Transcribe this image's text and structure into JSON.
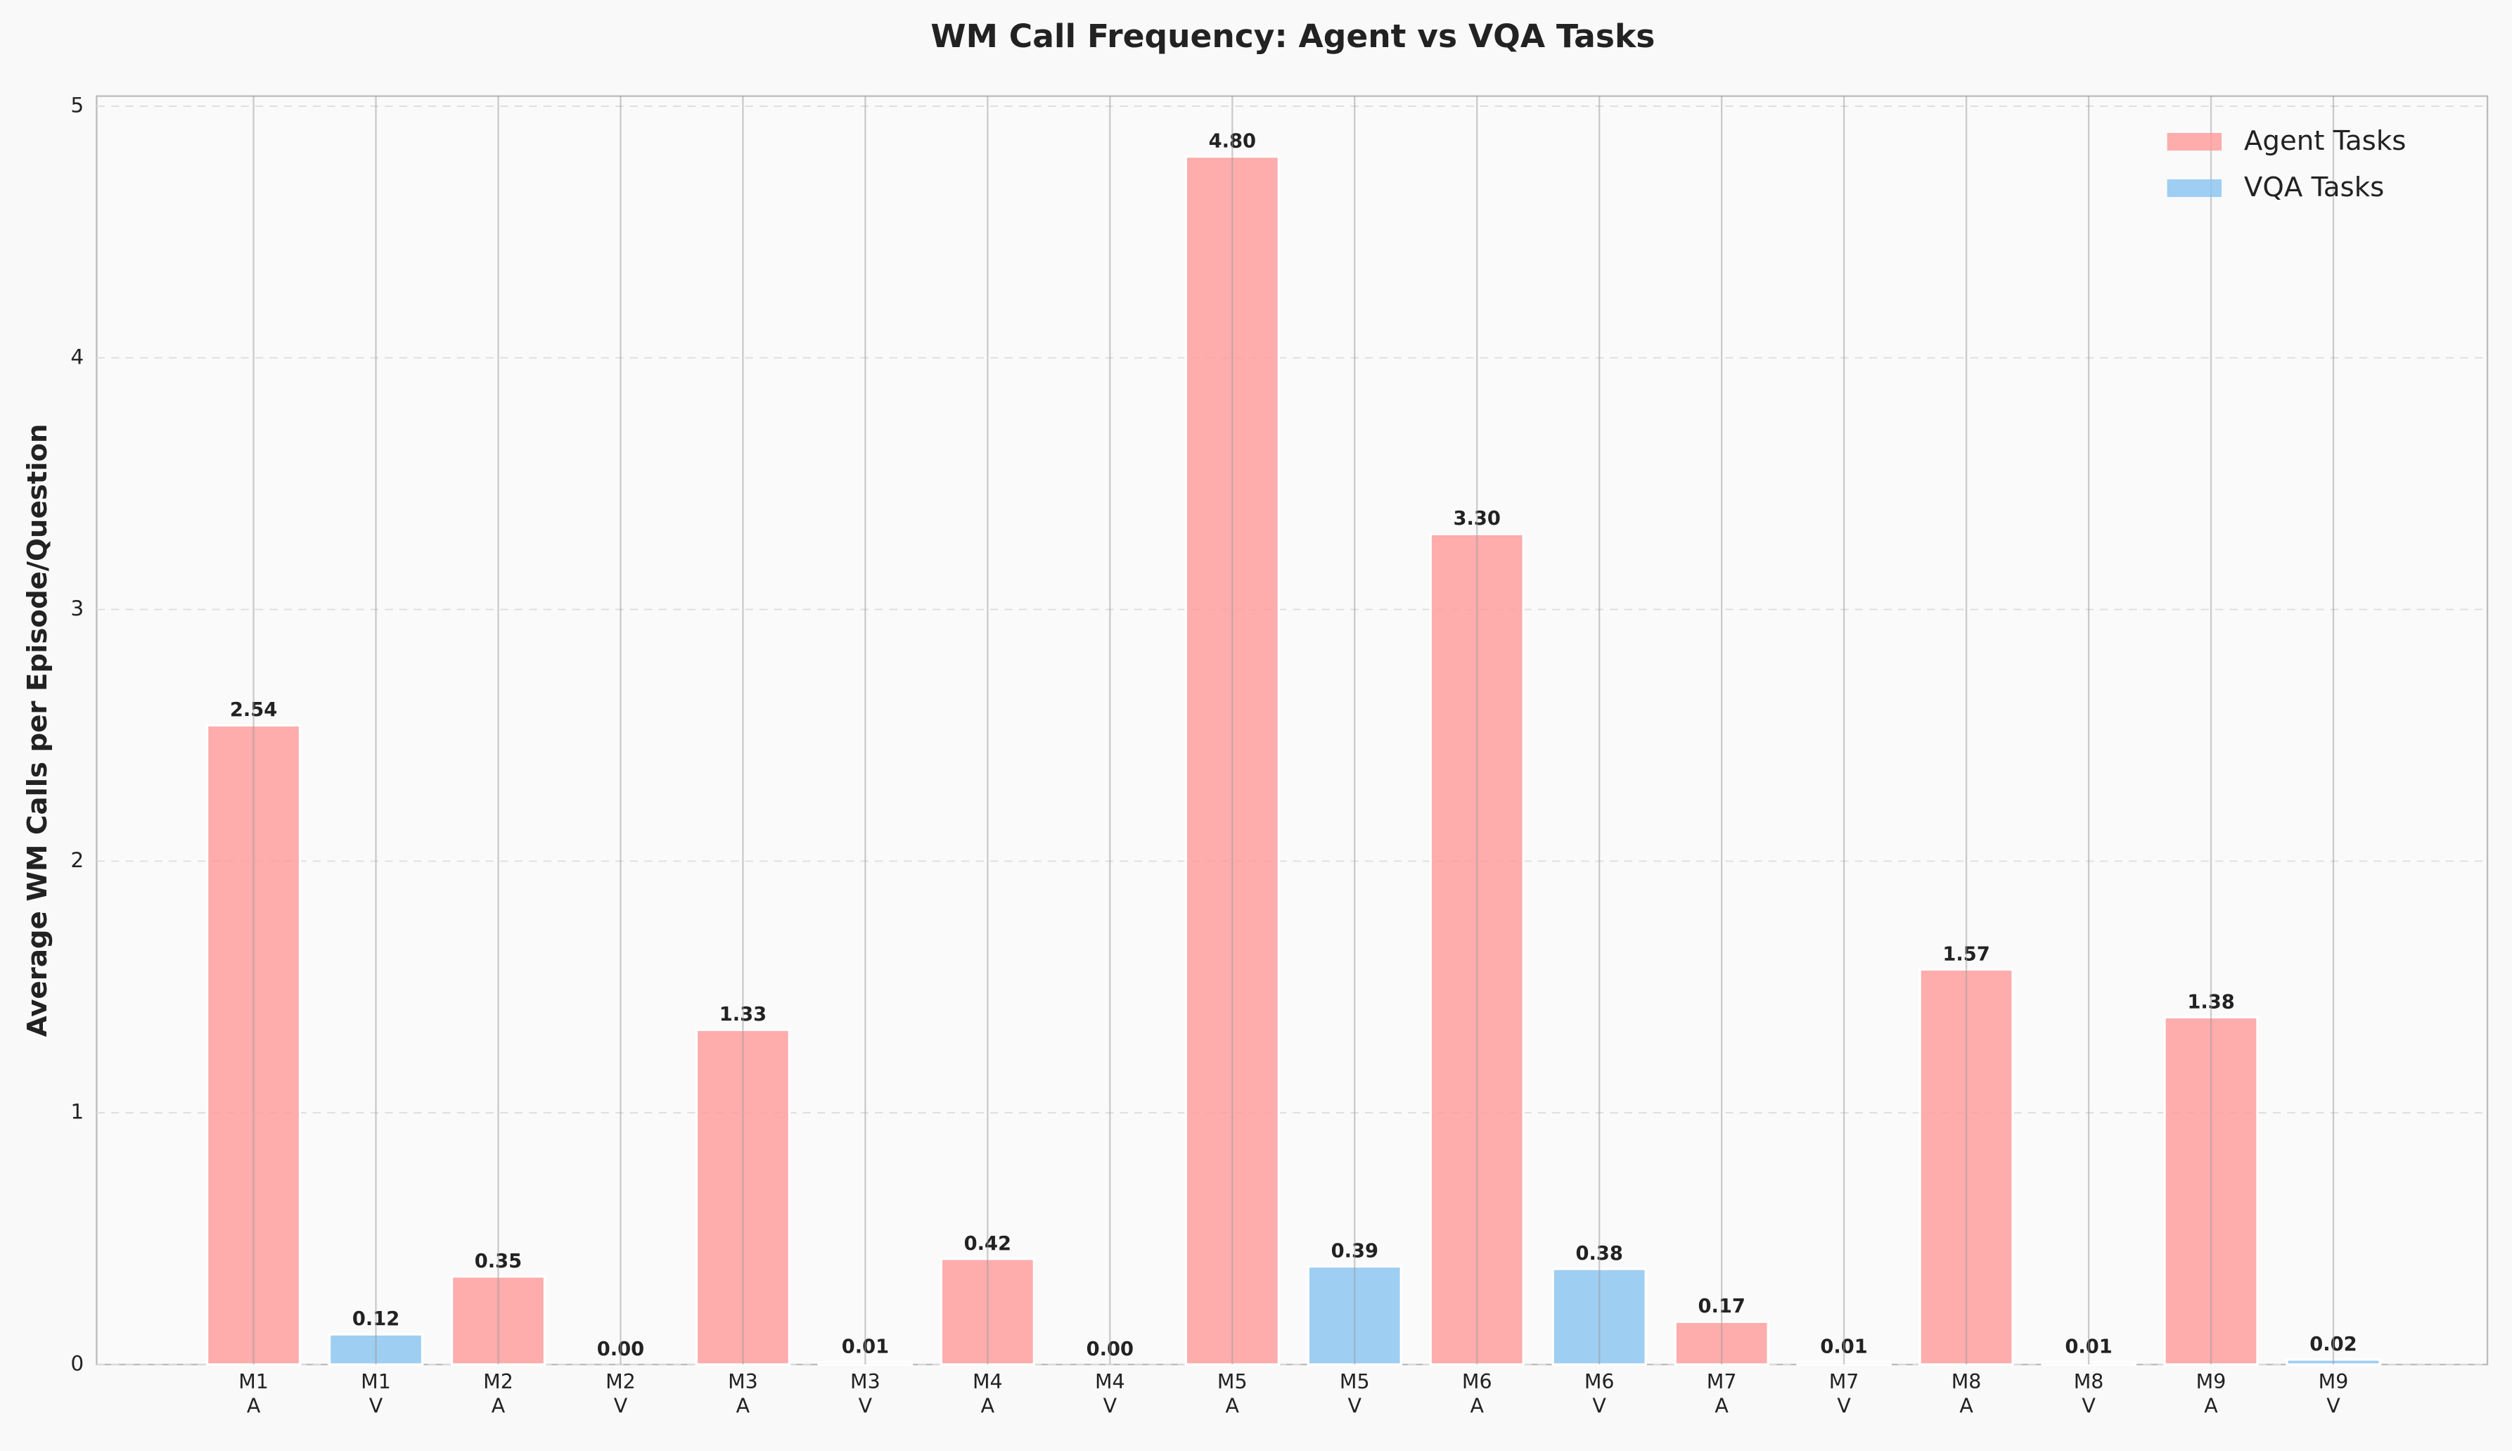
{
  "chart_data": {
    "type": "bar",
    "title": "WM Call Frequency: Agent vs VQA Tasks",
    "y_label": "Average WM Calls per Episode/Question",
    "categories": [
      "M1\nA",
      "M1\nV",
      "M2\nA",
      "M2\nV",
      "M3\nA",
      "M3\nV",
      "M4\nA",
      "M4\nV",
      "M5\nA",
      "M5\nV",
      "M6\nA",
      "M6\nV",
      "M7\nA",
      "M7\nV",
      "M8\nA",
      "M8\nV",
      "M9\nA",
      "M9\nV"
    ],
    "series": [
      {
        "name": "Agent Tasks",
        "color": "#ff9999",
        "values": [
          2.54,
          null,
          0.35,
          null,
          1.33,
          null,
          0.42,
          null,
          4.8,
          null,
          3.3,
          null,
          0.17,
          null,
          1.57,
          null,
          1.38,
          null
        ],
        "value_labels": [
          "2.54",
          null,
          "0.35",
          null,
          "1.33",
          null,
          "0.42",
          null,
          "4.80",
          null,
          "3.30",
          null,
          "0.17",
          null,
          "1.57",
          null,
          "1.38",
          null
        ]
      },
      {
        "name": "VQA Tasks",
        "color": "#87c3f0",
        "values": [
          null,
          0.12,
          null,
          0,
          null,
          0.01,
          null,
          0,
          null,
          0.39,
          null,
          0.38,
          null,
          0.01,
          null,
          0.01,
          null,
          0.02
        ],
        "value_labels": [
          null,
          "0.12",
          null,
          "0.00",
          null,
          "0.01",
          null,
          "0.00",
          null,
          "0.39",
          null,
          "0.38",
          null,
          "0.01",
          null,
          "0.01",
          null,
          "0.02"
        ]
      }
    ],
    "ylim": [
      0,
      5.04
    ],
    "yticks": [
      0,
      1,
      2,
      3,
      4,
      5
    ],
    "grid": true,
    "legend": "upper right"
  }
}
